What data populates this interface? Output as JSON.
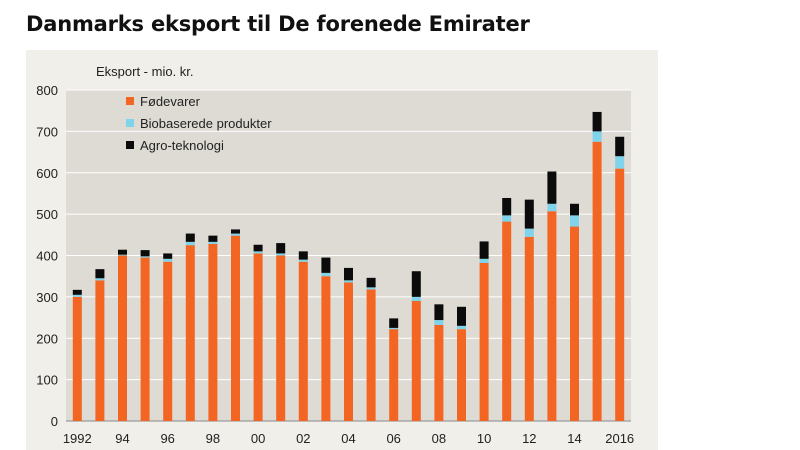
{
  "page": {
    "title": "Danmarks eksport til De forenede Emirater"
  },
  "colors": {
    "plot_bg": "#dedbd4",
    "grid": "#ffffff",
    "food": "#f26522",
    "bio": "#7fd3ea",
    "agro": "#0b0b0b"
  },
  "chart_data": {
    "type": "bar",
    "stacked": true,
    "title": "",
    "xlabel": "",
    "ylabel": "Eksport - mio. kr.",
    "ylim": [
      0,
      800
    ],
    "yticks": [
      0,
      100,
      200,
      300,
      400,
      500,
      600,
      700,
      800
    ],
    "grid": true,
    "legend_position": "top-left",
    "categories": [
      "1992",
      "1993",
      "1994",
      "1995",
      "1996",
      "1997",
      "1998",
      "1999",
      "2000",
      "2001",
      "2002",
      "2003",
      "2004",
      "2005",
      "2006",
      "2007",
      "2008",
      "2009",
      "2010",
      "2011",
      "2012",
      "2013",
      "2014",
      "2015",
      "2016"
    ],
    "x_tick_labels": [
      "1992",
      "",
      "94",
      "",
      "96",
      "",
      "98",
      "",
      "00",
      "",
      "02",
      "",
      "04",
      "",
      "06",
      "",
      "08",
      "",
      "10",
      "",
      "12",
      "",
      "14",
      "",
      "2016"
    ],
    "series": [
      {
        "name": "Fødevarer",
        "color_key": "food",
        "values": [
          300,
          340,
          400,
          395,
          385,
          425,
          428,
          448,
          405,
          400,
          385,
          350,
          335,
          318,
          222,
          290,
          232,
          222,
          382,
          482,
          445,
          507,
          470,
          675,
          610
        ]
      },
      {
        "name": "Biobaserede produkter",
        "color_key": "bio",
        "values": [
          5,
          5,
          2,
          3,
          7,
          8,
          5,
          5,
          5,
          5,
          5,
          8,
          5,
          5,
          3,
          10,
          12,
          8,
          10,
          15,
          20,
          18,
          27,
          25,
          30
        ]
      },
      {
        "name": "Agro-teknologi",
        "color_key": "agro",
        "values": [
          12,
          22,
          12,
          15,
          13,
          20,
          15,
          10,
          16,
          25,
          20,
          37,
          30,
          23,
          23,
          62,
          38,
          46,
          42,
          42,
          70,
          78,
          28,
          47,
          47
        ]
      }
    ]
  }
}
